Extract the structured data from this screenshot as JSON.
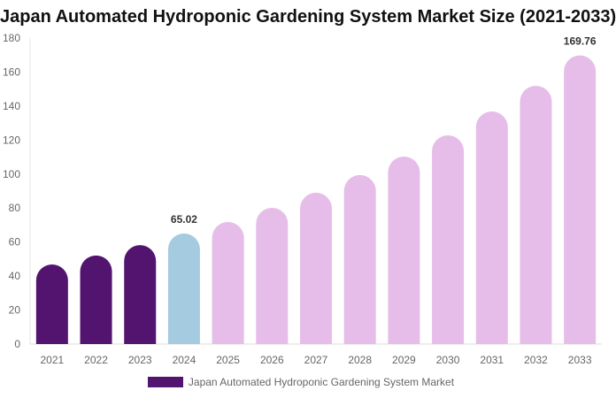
{
  "chart_data": {
    "type": "bar",
    "title": "Japan Automated Hydroponic Gardening System Market Size (2021-2033)",
    "categories": [
      "2021",
      "2022",
      "2023",
      "2024",
      "2025",
      "2026",
      "2027",
      "2028",
      "2029",
      "2030",
      "2031",
      "2032",
      "2033"
    ],
    "series": [
      {
        "name": "Japan Automated Hydroponic Gardening System Market",
        "values": [
          46.8,
          52.1,
          58.2,
          65.02,
          71.8,
          80.1,
          89.0,
          99.4,
          110.3,
          122.8,
          136.8,
          151.9,
          169.76
        ]
      }
    ],
    "data_labels": {
      "2024": "65.02",
      "2033": "169.76"
    },
    "bar_colors": {
      "historical": "#53146f",
      "base_year": "#a4cbe0",
      "forecast": "#e6bde8"
    },
    "xlabel": "",
    "ylabel": "",
    "ylim": [
      0,
      180
    ],
    "yticks": [
      0,
      20,
      40,
      60,
      80,
      100,
      120,
      140,
      160,
      180
    ],
    "grid": false,
    "legend": "bottom"
  }
}
